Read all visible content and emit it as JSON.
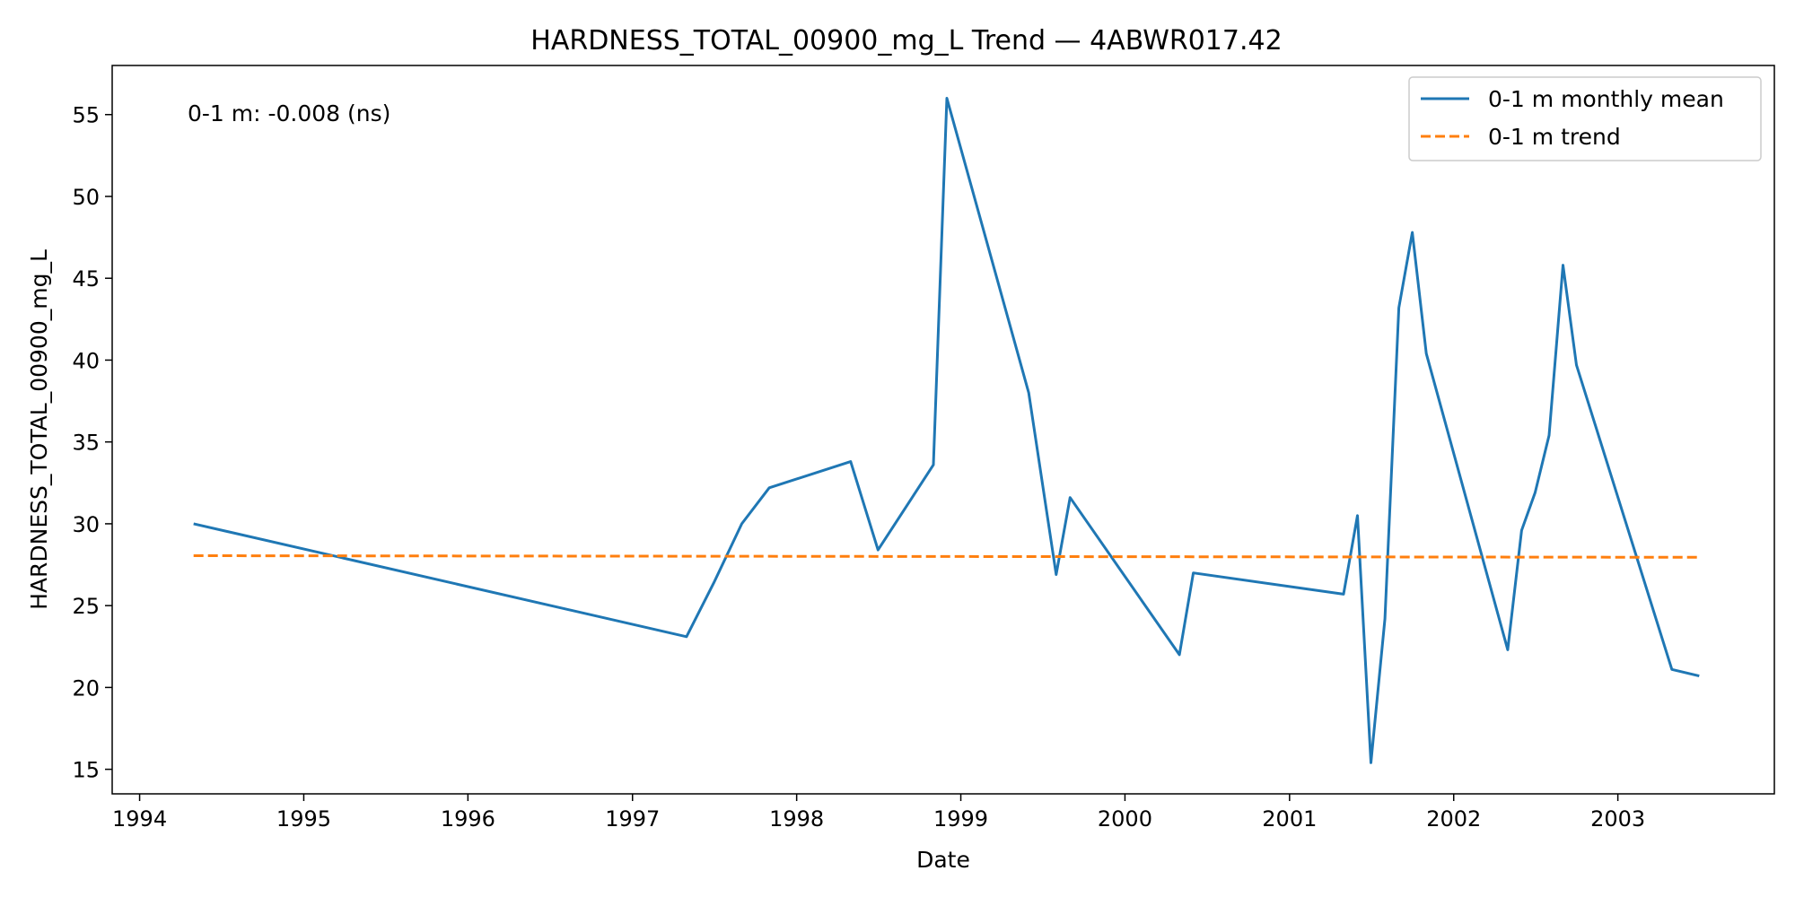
{
  "chart_data": {
    "type": "line",
    "title": "HARDNESS_TOTAL_00900_mg_L Trend — 4ABWR017.42",
    "xlabel": "Date",
    "ylabel": "HARDNESS_TOTAL_00900_mg_L",
    "x_axis_type": "date",
    "xlim": [
      "1993-11-01",
      "2003-12-15"
    ],
    "ylim": [
      13.5,
      58.0
    ],
    "x_ticks": [
      "1994",
      "1995",
      "1996",
      "1997",
      "1998",
      "1999",
      "2000",
      "2001",
      "2002",
      "2003"
    ],
    "y_ticks": [
      15,
      20,
      25,
      30,
      35,
      40,
      45,
      50,
      55
    ],
    "grid": false,
    "legend_position": "top-right",
    "annotation": "0-1 m: -0.008 (ns)",
    "series": [
      {
        "name": "0-1 m monthly mean",
        "color": "#1f77b4",
        "style": "solid",
        "points": [
          {
            "x": "1994-05-01",
            "y": 30.0
          },
          {
            "x": "1997-05-01",
            "y": 23.1
          },
          {
            "x": "1997-07-01",
            "y": 26.4
          },
          {
            "x": "1997-09-01",
            "y": 30.0
          },
          {
            "x": "1997-11-01",
            "y": 32.2
          },
          {
            "x": "1998-05-01",
            "y": 33.8
          },
          {
            "x": "1998-07-01",
            "y": 28.4
          },
          {
            "x": "1998-11-01",
            "y": 33.6
          },
          {
            "x": "1998-12-01",
            "y": 56.0
          },
          {
            "x": "1999-06-01",
            "y": 38.0
          },
          {
            "x": "1999-08-01",
            "y": 26.9
          },
          {
            "x": "1999-09-01",
            "y": 31.6
          },
          {
            "x": "2000-05-01",
            "y": 22.0
          },
          {
            "x": "2000-06-01",
            "y": 27.0
          },
          {
            "x": "2001-05-01",
            "y": 25.7
          },
          {
            "x": "2001-06-01",
            "y": 30.5
          },
          {
            "x": "2001-07-01",
            "y": 15.4
          },
          {
            "x": "2001-08-01",
            "y": 24.2
          },
          {
            "x": "2001-09-01",
            "y": 43.2
          },
          {
            "x": "2001-10-01",
            "y": 47.8
          },
          {
            "x": "2001-11-01",
            "y": 40.4
          },
          {
            "x": "2002-05-01",
            "y": 22.3
          },
          {
            "x": "2002-06-01",
            "y": 29.6
          },
          {
            "x": "2002-07-01",
            "y": 31.9
          },
          {
            "x": "2002-08-01",
            "y": 35.4
          },
          {
            "x": "2002-09-01",
            "y": 45.8
          },
          {
            "x": "2002-10-01",
            "y": 39.7
          },
          {
            "x": "2003-05-01",
            "y": 21.1
          },
          {
            "x": "2003-07-01",
            "y": 20.7
          }
        ]
      },
      {
        "name": "0-1 m trend",
        "color": "#ff7f0e",
        "style": "dashed",
        "points": [
          {
            "x": "1994-05-01",
            "y": 28.05
          },
          {
            "x": "2003-07-01",
            "y": 27.95
          }
        ]
      }
    ]
  }
}
